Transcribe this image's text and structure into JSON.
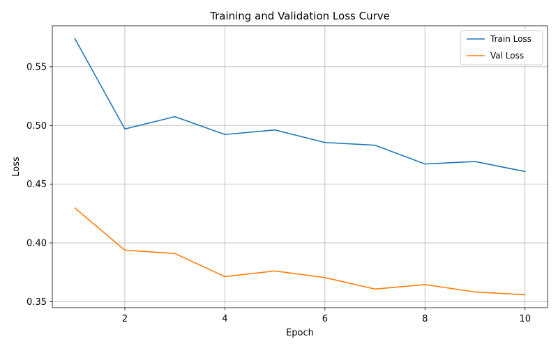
{
  "chart_data": {
    "type": "line",
    "title": "Training and Validation Loss Curve",
    "xlabel": "Epoch",
    "ylabel": "Loss",
    "x": [
      1,
      2,
      3,
      4,
      5,
      6,
      7,
      8,
      9,
      10
    ],
    "series": [
      {
        "name": "Train Loss",
        "color": "#1f77b4",
        "values": [
          0.574,
          0.497,
          0.5075,
          0.4923,
          0.4962,
          0.4855,
          0.4832,
          0.4672,
          0.4693,
          0.4608
        ]
      },
      {
        "name": "Val Loss",
        "color": "#ff7f0e",
        "values": [
          0.4298,
          0.3938,
          0.391,
          0.3713,
          0.3761,
          0.3705,
          0.3607,
          0.3645,
          0.3583,
          0.3558
        ]
      }
    ],
    "xlim": [
      0.55,
      10.45
    ],
    "ylim": [
      0.3449,
      0.5849
    ],
    "xticks": [
      2,
      4,
      6,
      8,
      10
    ],
    "xtick_labels": [
      "2",
      "4",
      "6",
      "8",
      "10"
    ],
    "yticks": [
      0.35,
      0.4,
      0.45,
      0.5,
      0.55
    ],
    "ytick_labels": [
      "0.35",
      "0.40",
      "0.45",
      "0.50",
      "0.55"
    ],
    "grid": true,
    "legend_position": "top-right"
  }
}
